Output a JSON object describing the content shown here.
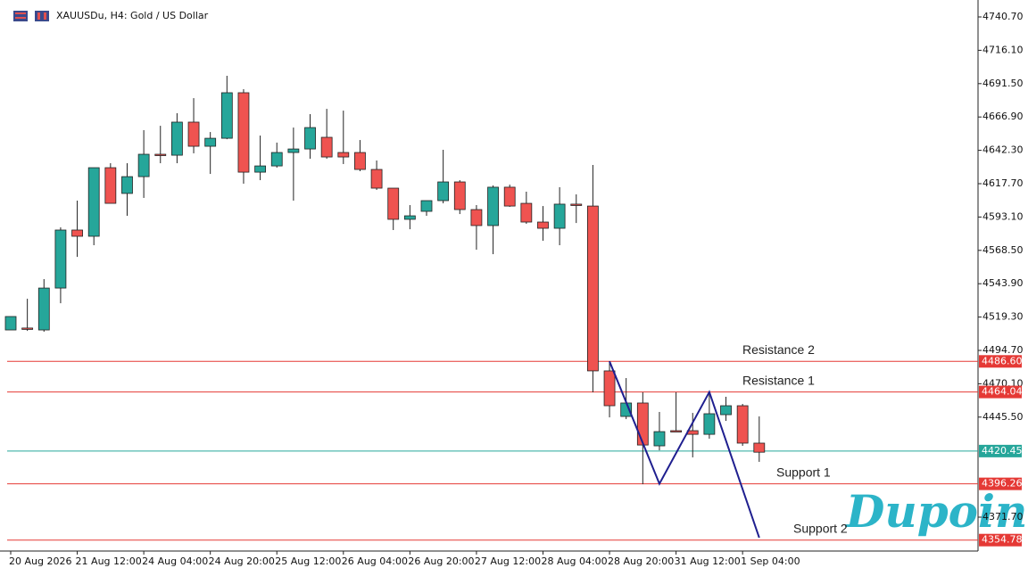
{
  "chart_data": {
    "type": "candlestick",
    "title": "XAUUSDu, H4: Gold / US Dollar",
    "watermark": "Dupoin",
    "categories": [
      "20 Aug 2026",
      null,
      null,
      null,
      "21 Aug 12:00",
      null,
      null,
      null,
      "24 Aug 04:00",
      null,
      null,
      null,
      "24 Aug 20:00",
      null,
      null,
      null,
      "25 Aug 12:00",
      null,
      null,
      null,
      "26 Aug 04:00",
      null,
      null,
      null,
      "26 Aug 20:00",
      null,
      null,
      null,
      "27 Aug 12:00",
      null,
      null,
      null,
      "28 Aug 04:00",
      null,
      null,
      null,
      "28 Aug 20:00",
      null,
      null,
      null,
      "31 Aug 12:00",
      null,
      null,
      null,
      "1 Sep 04:00",
      null
    ],
    "up_color": "#26a69a",
    "down_color": "#ef5350",
    "open": [
      4509.8,
      4511.2,
      4509.8,
      4540.7,
      4583.5,
      4578.9,
      4629.5,
      4610.5,
      4622.9,
      4639.4,
      4638.7,
      4663.1,
      4645.3,
      4651.2,
      4684.8,
      4626.2,
      4630.8,
      4640.7,
      4643.3,
      4651.9,
      4640.7,
      4640.7,
      4628.2,
      4614.4,
      4591.4,
      4597.3,
      4605.2,
      4619.0,
      4598.6,
      4586.8,
      4615.1,
      4603.2,
      4589.4,
      4584.8,
      4602.6,
      4601.2,
      4479.6,
      4446.0,
      4455.9,
      4424.3,
      4435.5,
      4435.5,
      4432.8,
      4447.3,
      4453.9,
      4426.3
    ],
    "high": [
      4519.7,
      4532.8,
      4547.3,
      4585.5,
      4605.2,
      4629.5,
      4632.8,
      4632.8,
      4657.2,
      4660.4,
      4669.7,
      4680.8,
      4655.8,
      4697.3,
      4687.4,
      4653.2,
      4648.0,
      4659.1,
      4669.0,
      4672.9,
      4671.6,
      4649.9,
      4634.8,
      4614.4,
      4601.9,
      4605.2,
      4642.7,
      4620.3,
      4601.9,
      4616.4,
      4617.0,
      4611.8,
      4601.2,
      4615.1,
      4609.8,
      4631.5,
      4486.8,
      4474.3,
      4463.8,
      4449.3,
      4463.8,
      4448.6,
      4463.8,
      4460.5,
      4455.2,
      4446.0
    ],
    "low": [
      4509.8,
      4509.1,
      4508.5,
      4529.5,
      4563.7,
      4572.3,
      4603.2,
      4594.0,
      4607.2,
      4632.8,
      4632.8,
      4640.1,
      4624.9,
      4650.5,
      4617.7,
      4620.3,
      4629.5,
      4605.2,
      4636.1,
      4636.1,
      4632.2,
      4626.9,
      4613.1,
      4583.5,
      4584.1,
      4594.0,
      4603.2,
      4595.3,
      4569.0,
      4565.7,
      4600.6,
      4588.1,
      4575.6,
      4572.3,
      4588.7,
      4463.8,
      4445.3,
      4444.0,
      4396.0,
      4421.0,
      4434.8,
      4415.8,
      4429.6,
      4442.7,
      4424.3,
      4412.5
    ],
    "close": [
      4519.7,
      4510.5,
      4540.7,
      4583.5,
      4578.9,
      4629.5,
      4603.2,
      4622.9,
      4639.4,
      4639.0,
      4663.1,
      4645.3,
      4651.2,
      4684.8,
      4626.2,
      4630.8,
      4640.7,
      4643.3,
      4659.1,
      4637.4,
      4637.4,
      4628.2,
      4614.4,
      4591.4,
      4594.0,
      4605.2,
      4619.0,
      4598.6,
      4586.8,
      4615.1,
      4601.2,
      4589.4,
      4584.8,
      4602.6,
      4601.6,
      4479.6,
      4453.9,
      4455.9,
      4424.9,
      4434.8,
      4435.0,
      4432.8,
      4448.0,
      4453.9,
      4426.3,
      4419.6
    ],
    "ylim": [
      4346.7,
      4753.2
    ],
    "yticks": [
      {
        "value": 4740.7,
        "label": "4740.70"
      },
      {
        "value": 4716.1,
        "label": "4716.10"
      },
      {
        "value": 4691.5,
        "label": "4691.50"
      },
      {
        "value": 4666.9,
        "label": "4666.90"
      },
      {
        "value": 4642.3,
        "label": "4642.30"
      },
      {
        "value": 4617.7,
        "label": "4617.70"
      },
      {
        "value": 4593.1,
        "label": "4593.10"
      },
      {
        "value": 4568.5,
        "label": "4568.50"
      },
      {
        "value": 4543.9,
        "label": "4543.90"
      },
      {
        "value": 4519.3,
        "label": "4519.30"
      },
      {
        "value": 4494.7,
        "label": "4494.70"
      },
      {
        "value": 4470.1,
        "label": "4470.10"
      },
      {
        "value": 4445.5,
        "label": "4445.50"
      },
      {
        "value": 4371.7,
        "label": "4371.70"
      }
    ],
    "levels": [
      {
        "name": "Resistance 2",
        "value": 4486.6,
        "label": "4486.60",
        "color": "#e53935"
      },
      {
        "name": "Resistance 1",
        "value": 4464.04,
        "label": "4464.04",
        "color": "#e53935"
      },
      {
        "value": 4420.45,
        "label": "4420.45",
        "color": "#26a69a"
      },
      {
        "name": "Support 1",
        "value": 4396.26,
        "label": "4396.26",
        "color": "#e53935"
      },
      {
        "name": "Support 2",
        "value": 4354.78,
        "label": "4354.78",
        "color": "#e53935"
      }
    ],
    "zigzag": {
      "color": "#1f1f8f",
      "x": [
        36,
        39,
        42,
        45
      ],
      "y": [
        4486.6,
        4396.3,
        4464.0,
        4356.5
      ]
    },
    "grid": false
  }
}
